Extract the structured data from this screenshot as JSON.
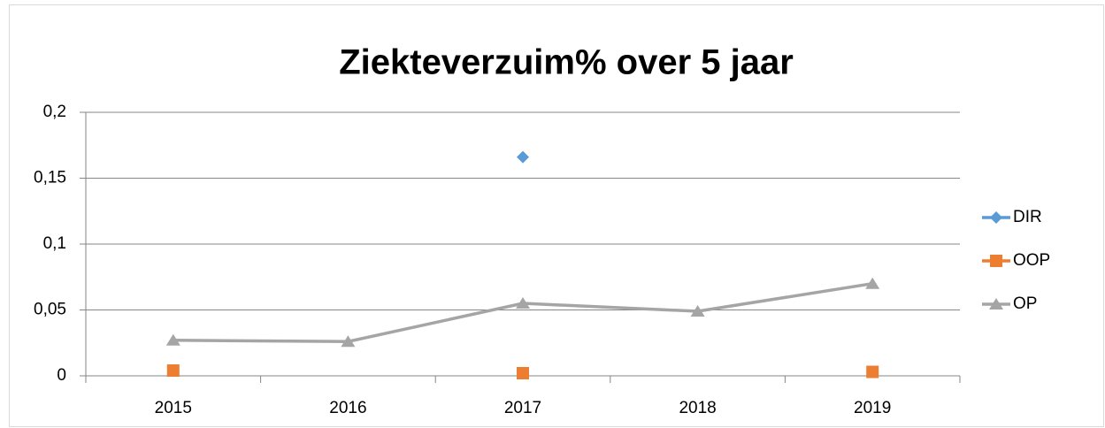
{
  "chart_data": {
    "type": "line",
    "title": "Ziekteverzuim% over 5 jaar",
    "categories": [
      "2015",
      "2016",
      "2017",
      "2018",
      "2019"
    ],
    "series": [
      {
        "name": "DIR",
        "color": "#5b9bd5",
        "marker": "diamond",
        "values": [
          null,
          null,
          0.166,
          null,
          null
        ]
      },
      {
        "name": "OOP",
        "color": "#ed7d31",
        "marker": "square",
        "values": [
          0.004,
          null,
          0.002,
          null,
          0.003
        ]
      },
      {
        "name": "OP",
        "color": "#a5a5a5",
        "marker": "triangle",
        "values": [
          0.027,
          0.026,
          0.055,
          0.049,
          0.07
        ]
      }
    ],
    "ylim": [
      0,
      0.2
    ],
    "yticks": [
      0,
      {
        "value": 0.05,
        "label": "0,05"
      },
      {
        "value": 0.1,
        "label": "0,1"
      },
      {
        "value": 0.15,
        "label": "0,15"
      },
      {
        "value": 0.2,
        "label": "0,2"
      }
    ],
    "grid": true,
    "legend": "right"
  }
}
